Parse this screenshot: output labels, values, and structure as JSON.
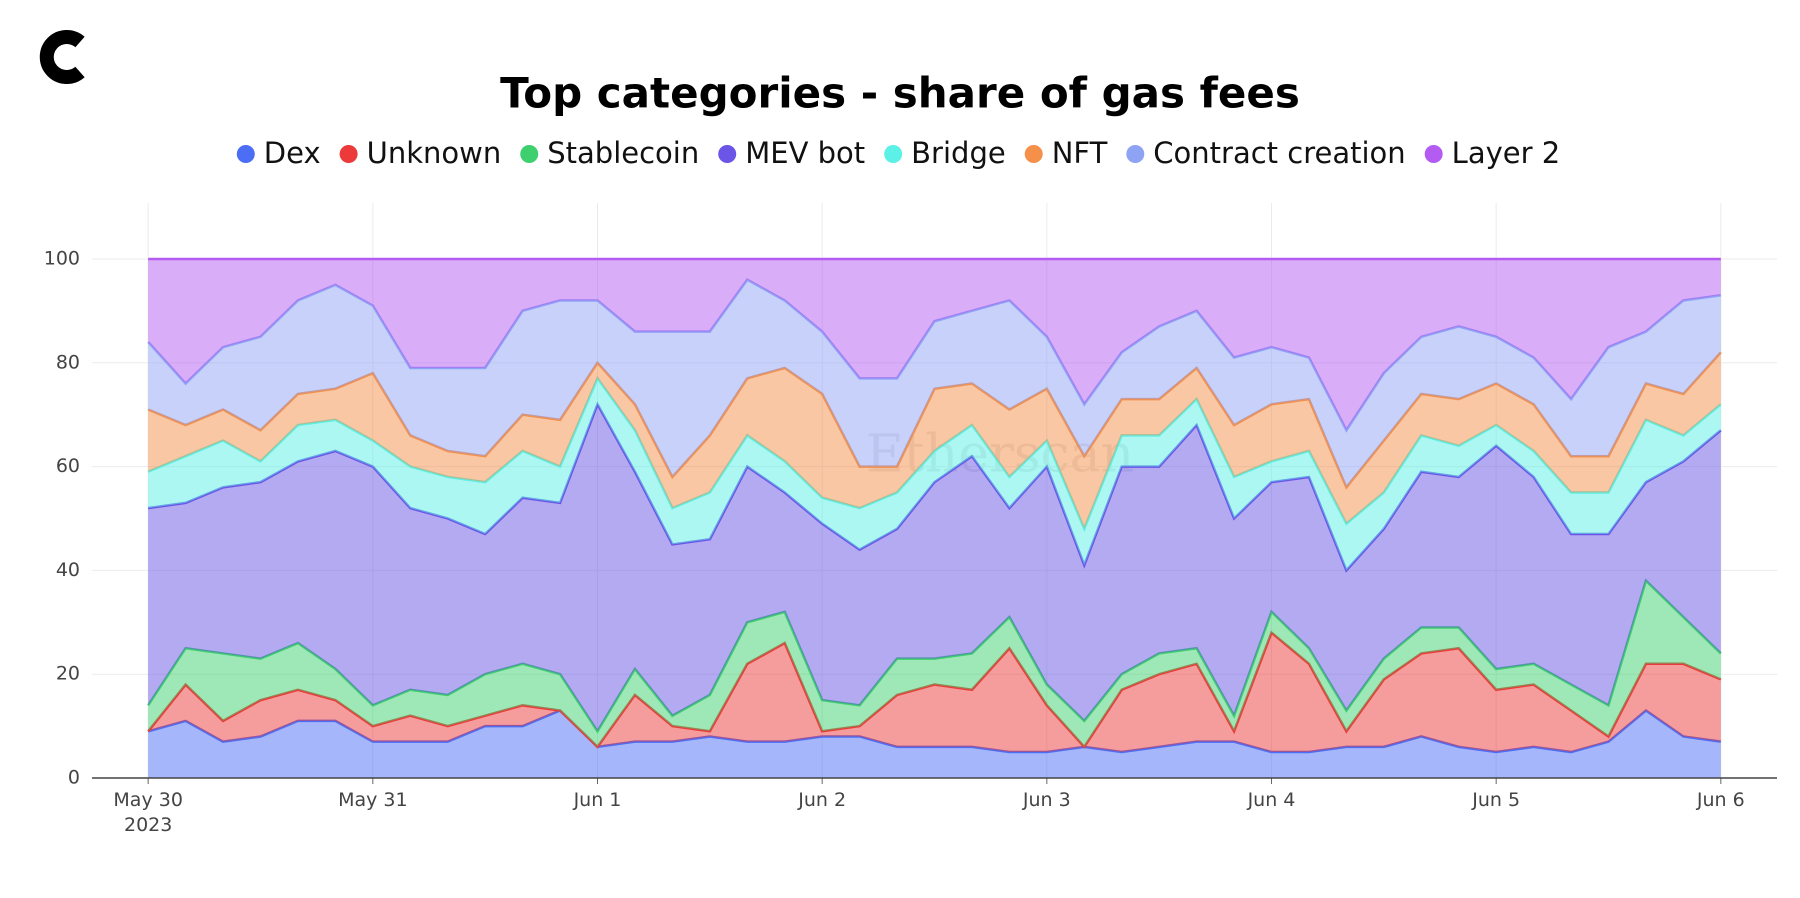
{
  "chart_data": {
    "type": "stacked_area",
    "title": "Top categories - share of gas fees",
    "watermark": "Etherscan",
    "x": [
      "2023-05-30T00:00",
      "2023-05-30T04:00",
      "2023-05-30T08:00",
      "2023-05-30T12:00",
      "2023-05-30T16:00",
      "2023-05-30T20:00",
      "2023-05-31T00:00",
      "2023-05-31T04:00",
      "2023-05-31T08:00",
      "2023-05-31T12:00",
      "2023-05-31T16:00",
      "2023-05-31T20:00",
      "2023-06-01T00:00",
      "2023-06-01T04:00",
      "2023-06-01T08:00",
      "2023-06-01T12:00",
      "2023-06-01T16:00",
      "2023-06-01T20:00",
      "2023-06-02T00:00",
      "2023-06-02T04:00",
      "2023-06-02T08:00",
      "2023-06-02T12:00",
      "2023-06-02T16:00",
      "2023-06-02T20:00",
      "2023-06-03T00:00",
      "2023-06-03T04:00",
      "2023-06-03T08:00",
      "2023-06-03T12:00",
      "2023-06-03T16:00",
      "2023-06-03T20:00",
      "2023-06-04T00:00",
      "2023-06-04T04:00",
      "2023-06-04T08:00",
      "2023-06-04T12:00",
      "2023-06-04T16:00",
      "2023-06-04T20:00",
      "2023-06-05T00:00",
      "2023-06-05T04:00",
      "2023-06-05T08:00",
      "2023-06-05T12:00",
      "2023-06-05T16:00",
      "2023-06-05T20:00",
      "2023-06-06T00:00"
    ],
    "series": [
      {
        "name": "Dex",
        "color": "#4c6ef5",
        "values": [
          9,
          11,
          7,
          8,
          11,
          11,
          7,
          7,
          7,
          10,
          10,
          13,
          6,
          7,
          7,
          8,
          7,
          7,
          8,
          8,
          6,
          6,
          6,
          5,
          5,
          6,
          5,
          6,
          7,
          7,
          5,
          5,
          6,
          6,
          8,
          6,
          5,
          6,
          5,
          7,
          13,
          8,
          7
        ]
      },
      {
        "name": "Unknown",
        "color": "#ec3a3a",
        "values": [
          0,
          7,
          4,
          7,
          6,
          4,
          3,
          5,
          3,
          2,
          4,
          0,
          0,
          9,
          3,
          1,
          15,
          19,
          1,
          2,
          10,
          12,
          11,
          20,
          9,
          0,
          12,
          14,
          15,
          2,
          23,
          17,
          3,
          13,
          16,
          19,
          12,
          12,
          8,
          1,
          9,
          14,
          12
        ]
      },
      {
        "name": "Stablecoin",
        "color": "#3ecf6e",
        "values": [
          5,
          7,
          13,
          8,
          9,
          6,
          4,
          5,
          6,
          8,
          8,
          7,
          3,
          5,
          2,
          7,
          8,
          6,
          6,
          4,
          7,
          5,
          7,
          6,
          4,
          5,
          3,
          4,
          3,
          3,
          4,
          3,
          4,
          4,
          5,
          4,
          4,
          4,
          5,
          6,
          16,
          9,
          5
        ]
      },
      {
        "name": "MEV bot",
        "color": "#6a55e6",
        "values": [
          38,
          28,
          32,
          34,
          35,
          42,
          46,
          35,
          34,
          27,
          32,
          33,
          63,
          38,
          33,
          30,
          30,
          23,
          34,
          30,
          25,
          34,
          38,
          21,
          42,
          30,
          40,
          36,
          43,
          38,
          25,
          33,
          27,
          25,
          30,
          29,
          43,
          36,
          29,
          33,
          19,
          30,
          43
        ]
      },
      {
        "name": "Bridge",
        "color": "#5cf0e6",
        "values": [
          7,
          9,
          9,
          4,
          7,
          6,
          5,
          8,
          8,
          10,
          9,
          7,
          5,
          8,
          7,
          9,
          6,
          6,
          5,
          8,
          7,
          6,
          6,
          6,
          5,
          7,
          6,
          6,
          5,
          8,
          4,
          5,
          9,
          7,
          7,
          6,
          4,
          5,
          8,
          8,
          12,
          5,
          5
        ]
      },
      {
        "name": "NFT",
        "color": "#f4904a",
        "values": [
          12,
          6,
          6,
          6,
          6,
          6,
          13,
          6,
          5,
          5,
          7,
          9,
          3,
          5,
          6,
          11,
          11,
          18,
          20,
          8,
          5,
          12,
          8,
          13,
          10,
          14,
          7,
          7,
          6,
          10,
          11,
          10,
          7,
          10,
          8,
          9,
          8,
          9,
          7,
          7,
          7,
          8,
          10
        ]
      },
      {
        "name": "Contract creation",
        "color": "#8fa3f5",
        "values": [
          13,
          8,
          12,
          18,
          18,
          20,
          13,
          13,
          16,
          17,
          20,
          23,
          12,
          14,
          28,
          20,
          19,
          13,
          12,
          17,
          17,
          13,
          14,
          21,
          10,
          10,
          9,
          14,
          11,
          13,
          11,
          8,
          11,
          13,
          11,
          14,
          9,
          9,
          11,
          21,
          10,
          18,
          11
        ]
      },
      {
        "name": "Layer 2",
        "color": "#b45cf2",
        "values": [
          16,
          24,
          17,
          15,
          8,
          5,
          9,
          21,
          21,
          21,
          10,
          8,
          8,
          14,
          14,
          14,
          4,
          8,
          14,
          23,
          23,
          12,
          10,
          8,
          15,
          28,
          18,
          13,
          10,
          19,
          17,
          19,
          33,
          22,
          15,
          13,
          15,
          19,
          27,
          17,
          14,
          8,
          7
        ]
      }
    ],
    "xlim": [
      "2023-05-29T18:00",
      "2023-06-06T06:00"
    ],
    "xticks": [
      {
        "value": "2023-05-30T00:00",
        "label": "May 30\n2023"
      },
      {
        "value": "2023-05-31T00:00",
        "label": "May 31"
      },
      {
        "value": "2023-06-01T00:00",
        "label": "Jun 1"
      },
      {
        "value": "2023-06-02T00:00",
        "label": "Jun 2"
      },
      {
        "value": "2023-06-03T00:00",
        "label": "Jun 3"
      },
      {
        "value": "2023-06-04T00:00",
        "label": "Jun 4"
      },
      {
        "value": "2023-06-05T00:00",
        "label": "Jun 5"
      },
      {
        "value": "2023-06-06T00:00",
        "label": "Jun 6"
      }
    ],
    "ylim": [
      0,
      105
    ],
    "yticks": [
      0,
      20,
      40,
      60,
      80,
      100
    ],
    "grid": true,
    "legend": "top"
  }
}
